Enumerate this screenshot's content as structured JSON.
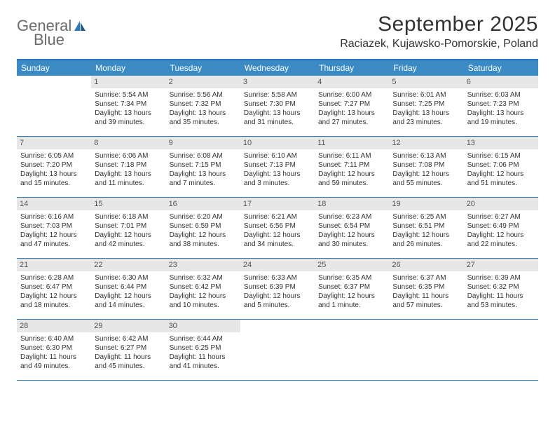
{
  "brand": {
    "word1": "General",
    "word2": "Blue"
  },
  "title": "September 2025",
  "location": "Raciazek, Kujawsko-Pomorskie, Poland",
  "colors": {
    "header_bar": "#3b8ac4",
    "border": "#2a78bd",
    "daynum_bg": "#e7e7e7",
    "text": "#333333",
    "logo_gray": "#6b6b6b",
    "logo_blue": "#2a78bd",
    "background": "#ffffff"
  },
  "weekdays": [
    "Sunday",
    "Monday",
    "Tuesday",
    "Wednesday",
    "Thursday",
    "Friday",
    "Saturday"
  ],
  "weeks": [
    [
      {
        "n": "",
        "sunrise": "",
        "sunset": "",
        "dl1": "",
        "dl2": ""
      },
      {
        "n": "1",
        "sunrise": "Sunrise: 5:54 AM",
        "sunset": "Sunset: 7:34 PM",
        "dl1": "Daylight: 13 hours",
        "dl2": "and 39 minutes."
      },
      {
        "n": "2",
        "sunrise": "Sunrise: 5:56 AM",
        "sunset": "Sunset: 7:32 PM",
        "dl1": "Daylight: 13 hours",
        "dl2": "and 35 minutes."
      },
      {
        "n": "3",
        "sunrise": "Sunrise: 5:58 AM",
        "sunset": "Sunset: 7:30 PM",
        "dl1": "Daylight: 13 hours",
        "dl2": "and 31 minutes."
      },
      {
        "n": "4",
        "sunrise": "Sunrise: 6:00 AM",
        "sunset": "Sunset: 7:27 PM",
        "dl1": "Daylight: 13 hours",
        "dl2": "and 27 minutes."
      },
      {
        "n": "5",
        "sunrise": "Sunrise: 6:01 AM",
        "sunset": "Sunset: 7:25 PM",
        "dl1": "Daylight: 13 hours",
        "dl2": "and 23 minutes."
      },
      {
        "n": "6",
        "sunrise": "Sunrise: 6:03 AM",
        "sunset": "Sunset: 7:23 PM",
        "dl1": "Daylight: 13 hours",
        "dl2": "and 19 minutes."
      }
    ],
    [
      {
        "n": "7",
        "sunrise": "Sunrise: 6:05 AM",
        "sunset": "Sunset: 7:20 PM",
        "dl1": "Daylight: 13 hours",
        "dl2": "and 15 minutes."
      },
      {
        "n": "8",
        "sunrise": "Sunrise: 6:06 AM",
        "sunset": "Sunset: 7:18 PM",
        "dl1": "Daylight: 13 hours",
        "dl2": "and 11 minutes."
      },
      {
        "n": "9",
        "sunrise": "Sunrise: 6:08 AM",
        "sunset": "Sunset: 7:15 PM",
        "dl1": "Daylight: 13 hours",
        "dl2": "and 7 minutes."
      },
      {
        "n": "10",
        "sunrise": "Sunrise: 6:10 AM",
        "sunset": "Sunset: 7:13 PM",
        "dl1": "Daylight: 13 hours",
        "dl2": "and 3 minutes."
      },
      {
        "n": "11",
        "sunrise": "Sunrise: 6:11 AM",
        "sunset": "Sunset: 7:11 PM",
        "dl1": "Daylight: 12 hours",
        "dl2": "and 59 minutes."
      },
      {
        "n": "12",
        "sunrise": "Sunrise: 6:13 AM",
        "sunset": "Sunset: 7:08 PM",
        "dl1": "Daylight: 12 hours",
        "dl2": "and 55 minutes."
      },
      {
        "n": "13",
        "sunrise": "Sunrise: 6:15 AM",
        "sunset": "Sunset: 7:06 PM",
        "dl1": "Daylight: 12 hours",
        "dl2": "and 51 minutes."
      }
    ],
    [
      {
        "n": "14",
        "sunrise": "Sunrise: 6:16 AM",
        "sunset": "Sunset: 7:03 PM",
        "dl1": "Daylight: 12 hours",
        "dl2": "and 47 minutes."
      },
      {
        "n": "15",
        "sunrise": "Sunrise: 6:18 AM",
        "sunset": "Sunset: 7:01 PM",
        "dl1": "Daylight: 12 hours",
        "dl2": "and 42 minutes."
      },
      {
        "n": "16",
        "sunrise": "Sunrise: 6:20 AM",
        "sunset": "Sunset: 6:59 PM",
        "dl1": "Daylight: 12 hours",
        "dl2": "and 38 minutes."
      },
      {
        "n": "17",
        "sunrise": "Sunrise: 6:21 AM",
        "sunset": "Sunset: 6:56 PM",
        "dl1": "Daylight: 12 hours",
        "dl2": "and 34 minutes."
      },
      {
        "n": "18",
        "sunrise": "Sunrise: 6:23 AM",
        "sunset": "Sunset: 6:54 PM",
        "dl1": "Daylight: 12 hours",
        "dl2": "and 30 minutes."
      },
      {
        "n": "19",
        "sunrise": "Sunrise: 6:25 AM",
        "sunset": "Sunset: 6:51 PM",
        "dl1": "Daylight: 12 hours",
        "dl2": "and 26 minutes."
      },
      {
        "n": "20",
        "sunrise": "Sunrise: 6:27 AM",
        "sunset": "Sunset: 6:49 PM",
        "dl1": "Daylight: 12 hours",
        "dl2": "and 22 minutes."
      }
    ],
    [
      {
        "n": "21",
        "sunrise": "Sunrise: 6:28 AM",
        "sunset": "Sunset: 6:47 PM",
        "dl1": "Daylight: 12 hours",
        "dl2": "and 18 minutes."
      },
      {
        "n": "22",
        "sunrise": "Sunrise: 6:30 AM",
        "sunset": "Sunset: 6:44 PM",
        "dl1": "Daylight: 12 hours",
        "dl2": "and 14 minutes."
      },
      {
        "n": "23",
        "sunrise": "Sunrise: 6:32 AM",
        "sunset": "Sunset: 6:42 PM",
        "dl1": "Daylight: 12 hours",
        "dl2": "and 10 minutes."
      },
      {
        "n": "24",
        "sunrise": "Sunrise: 6:33 AM",
        "sunset": "Sunset: 6:39 PM",
        "dl1": "Daylight: 12 hours",
        "dl2": "and 5 minutes."
      },
      {
        "n": "25",
        "sunrise": "Sunrise: 6:35 AM",
        "sunset": "Sunset: 6:37 PM",
        "dl1": "Daylight: 12 hours",
        "dl2": "and 1 minute."
      },
      {
        "n": "26",
        "sunrise": "Sunrise: 6:37 AM",
        "sunset": "Sunset: 6:35 PM",
        "dl1": "Daylight: 11 hours",
        "dl2": "and 57 minutes."
      },
      {
        "n": "27",
        "sunrise": "Sunrise: 6:39 AM",
        "sunset": "Sunset: 6:32 PM",
        "dl1": "Daylight: 11 hours",
        "dl2": "and 53 minutes."
      }
    ],
    [
      {
        "n": "28",
        "sunrise": "Sunrise: 6:40 AM",
        "sunset": "Sunset: 6:30 PM",
        "dl1": "Daylight: 11 hours",
        "dl2": "and 49 minutes."
      },
      {
        "n": "29",
        "sunrise": "Sunrise: 6:42 AM",
        "sunset": "Sunset: 6:27 PM",
        "dl1": "Daylight: 11 hours",
        "dl2": "and 45 minutes."
      },
      {
        "n": "30",
        "sunrise": "Sunrise: 6:44 AM",
        "sunset": "Sunset: 6:25 PM",
        "dl1": "Daylight: 11 hours",
        "dl2": "and 41 minutes."
      },
      {
        "n": "",
        "sunrise": "",
        "sunset": "",
        "dl1": "",
        "dl2": ""
      },
      {
        "n": "",
        "sunrise": "",
        "sunset": "",
        "dl1": "",
        "dl2": ""
      },
      {
        "n": "",
        "sunrise": "",
        "sunset": "",
        "dl1": "",
        "dl2": ""
      },
      {
        "n": "",
        "sunrise": "",
        "sunset": "",
        "dl1": "",
        "dl2": ""
      }
    ]
  ]
}
